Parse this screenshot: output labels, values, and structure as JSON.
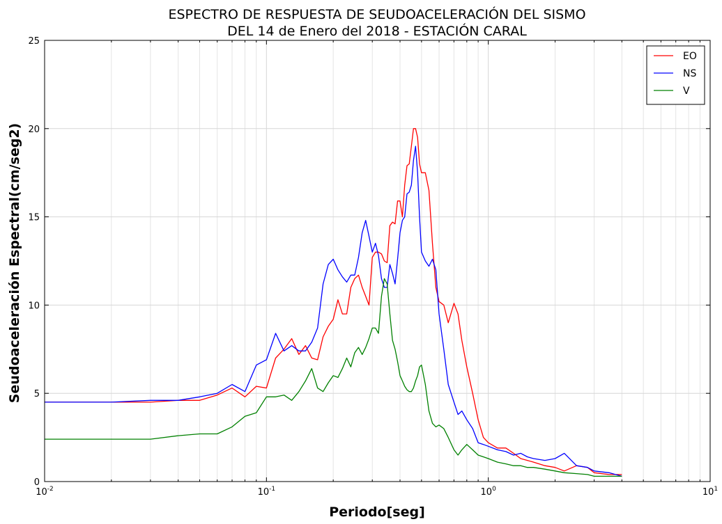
{
  "chart_data": {
    "type": "line",
    "title": [
      "ESPECTRO DE RESPUESTA DE SEUDOACELERACIÓN DEL SISMO",
      "DEL 14 de Enero del 2018 - ESTACIÓN CARAL"
    ],
    "xlabel": "Periodo[seg]",
    "ylabel": "Seudoaceleración Espectral(cm/seg2)",
    "xscale": "log",
    "xlim": [
      0.01,
      10
    ],
    "ylim": [
      0,
      25
    ],
    "grid": true,
    "legend_position": "top-right",
    "xticks": [
      {
        "value": 0.01,
        "base": "10",
        "exp": "-2"
      },
      {
        "value": 0.1,
        "base": "10",
        "exp": "-1"
      },
      {
        "value": 1,
        "base": "10",
        "exp": "0"
      },
      {
        "value": 10,
        "base": "10",
        "exp": "1"
      }
    ],
    "yticks": [
      {
        "value": 0,
        "label": "0"
      },
      {
        "value": 5,
        "label": "5"
      },
      {
        "value": 10,
        "label": "10"
      },
      {
        "value": 15,
        "label": "15"
      },
      {
        "value": 20,
        "label": "20"
      },
      {
        "value": 25,
        "label": "25"
      }
    ],
    "series": [
      {
        "name": "EO",
        "color": "#ff0000",
        "x": [
          0.01,
          0.02,
          0.03,
          0.04,
          0.05,
          0.06,
          0.07,
          0.08,
          0.09,
          0.1,
          0.11,
          0.12,
          0.13,
          0.14,
          0.15,
          0.16,
          0.17,
          0.18,
          0.19,
          0.2,
          0.21,
          0.22,
          0.23,
          0.24,
          0.25,
          0.26,
          0.27,
          0.28,
          0.29,
          0.3,
          0.31,
          0.32,
          0.33,
          0.34,
          0.35,
          0.36,
          0.37,
          0.38,
          0.39,
          0.4,
          0.41,
          0.42,
          0.43,
          0.44,
          0.45,
          0.46,
          0.47,
          0.48,
          0.49,
          0.5,
          0.52,
          0.54,
          0.56,
          0.58,
          0.6,
          0.63,
          0.66,
          0.7,
          0.73,
          0.76,
          0.8,
          0.85,
          0.9,
          0.95,
          1.0,
          1.1,
          1.2,
          1.3,
          1.4,
          1.5,
          1.6,
          1.8,
          2.0,
          2.2,
          2.5,
          2.8,
          3.0,
          3.5,
          4.0
        ],
        "y": [
          4.5,
          4.5,
          4.5,
          4.6,
          4.6,
          4.9,
          5.3,
          4.8,
          5.4,
          5.3,
          7.0,
          7.5,
          8.1,
          7.2,
          7.7,
          7.0,
          6.9,
          8.2,
          8.8,
          9.2,
          10.3,
          9.5,
          9.5,
          11.0,
          11.5,
          11.7,
          11.0,
          10.5,
          10.0,
          12.7,
          13.0,
          13.0,
          12.9,
          12.5,
          12.4,
          14.5,
          14.7,
          14.6,
          15.9,
          15.9,
          15.0,
          16.8,
          17.9,
          18.0,
          19.0,
          20.0,
          20.0,
          19.5,
          18.0,
          17.5,
          17.5,
          16.5,
          13.5,
          11.0,
          10.2,
          10.0,
          9.0,
          10.1,
          9.5,
          8.0,
          6.5,
          5.0,
          3.5,
          2.5,
          2.2,
          1.9,
          1.9,
          1.6,
          1.3,
          1.2,
          1.1,
          0.9,
          0.8,
          0.6,
          0.9,
          0.8,
          0.5,
          0.4,
          0.4
        ]
      },
      {
        "name": "NS",
        "color": "#0000ff",
        "x": [
          0.01,
          0.02,
          0.03,
          0.04,
          0.05,
          0.06,
          0.07,
          0.08,
          0.09,
          0.1,
          0.11,
          0.12,
          0.13,
          0.14,
          0.15,
          0.16,
          0.17,
          0.18,
          0.19,
          0.2,
          0.21,
          0.22,
          0.23,
          0.24,
          0.25,
          0.26,
          0.27,
          0.28,
          0.29,
          0.3,
          0.31,
          0.32,
          0.33,
          0.34,
          0.35,
          0.36,
          0.37,
          0.38,
          0.39,
          0.4,
          0.41,
          0.42,
          0.43,
          0.44,
          0.45,
          0.46,
          0.47,
          0.48,
          0.49,
          0.5,
          0.52,
          0.54,
          0.56,
          0.58,
          0.6,
          0.63,
          0.66,
          0.7,
          0.73,
          0.76,
          0.8,
          0.85,
          0.9,
          0.95,
          1.0,
          1.1,
          1.2,
          1.3,
          1.4,
          1.5,
          1.6,
          1.8,
          2.0,
          2.2,
          2.5,
          2.8,
          3.0,
          3.5,
          4.0
        ],
        "y": [
          4.5,
          4.5,
          4.6,
          4.6,
          4.8,
          5.0,
          5.5,
          5.1,
          6.6,
          6.9,
          8.4,
          7.4,
          7.7,
          7.4,
          7.4,
          7.9,
          8.7,
          11.2,
          12.3,
          12.6,
          12.0,
          11.6,
          11.3,
          11.7,
          11.7,
          12.7,
          14.1,
          14.8,
          13.9,
          13.0,
          13.5,
          12.8,
          11.5,
          11.0,
          11.0,
          12.3,
          11.8,
          11.2,
          12.6,
          14.1,
          14.8,
          15.0,
          16.3,
          16.4,
          16.8,
          18.2,
          19.0,
          17.5,
          15.0,
          13.0,
          12.5,
          12.2,
          12.6,
          12.0,
          9.5,
          7.5,
          5.5,
          4.5,
          3.8,
          4.0,
          3.5,
          3.0,
          2.2,
          2.1,
          2.0,
          1.8,
          1.7,
          1.5,
          1.6,
          1.4,
          1.3,
          1.2,
          1.3,
          1.6,
          0.9,
          0.8,
          0.6,
          0.5,
          0.3
        ]
      },
      {
        "name": "V",
        "color": "#008000",
        "x": [
          0.01,
          0.02,
          0.03,
          0.04,
          0.05,
          0.06,
          0.07,
          0.08,
          0.09,
          0.1,
          0.11,
          0.12,
          0.13,
          0.14,
          0.15,
          0.16,
          0.17,
          0.18,
          0.19,
          0.2,
          0.21,
          0.22,
          0.23,
          0.24,
          0.25,
          0.26,
          0.27,
          0.28,
          0.29,
          0.3,
          0.31,
          0.32,
          0.33,
          0.34,
          0.35,
          0.36,
          0.37,
          0.38,
          0.39,
          0.4,
          0.41,
          0.42,
          0.43,
          0.44,
          0.45,
          0.46,
          0.47,
          0.48,
          0.49,
          0.5,
          0.52,
          0.54,
          0.56,
          0.58,
          0.6,
          0.63,
          0.66,
          0.7,
          0.73,
          0.76,
          0.8,
          0.85,
          0.9,
          0.95,
          1.0,
          1.1,
          1.2,
          1.3,
          1.4,
          1.5,
          1.6,
          1.8,
          2.0,
          2.2,
          2.5,
          2.8,
          3.0,
          3.5,
          4.0
        ],
        "y": [
          2.4,
          2.4,
          2.4,
          2.6,
          2.7,
          2.7,
          3.1,
          3.7,
          3.9,
          4.8,
          4.8,
          4.9,
          4.6,
          5.1,
          5.7,
          6.4,
          5.3,
          5.1,
          5.6,
          6.0,
          5.9,
          6.4,
          7.0,
          6.5,
          7.3,
          7.6,
          7.2,
          7.6,
          8.1,
          8.7,
          8.7,
          8.4,
          10.5,
          11.5,
          11.2,
          9.5,
          8.0,
          7.5,
          6.8,
          6.0,
          5.7,
          5.4,
          5.2,
          5.1,
          5.1,
          5.3,
          5.7,
          6.0,
          6.5,
          6.6,
          5.5,
          4.0,
          3.3,
          3.1,
          3.2,
          3.0,
          2.5,
          1.8,
          1.5,
          1.8,
          2.1,
          1.8,
          1.5,
          1.4,
          1.3,
          1.1,
          1.0,
          0.9,
          0.9,
          0.8,
          0.8,
          0.7,
          0.6,
          0.5,
          0.45,
          0.4,
          0.3,
          0.3,
          0.3
        ]
      }
    ]
  }
}
